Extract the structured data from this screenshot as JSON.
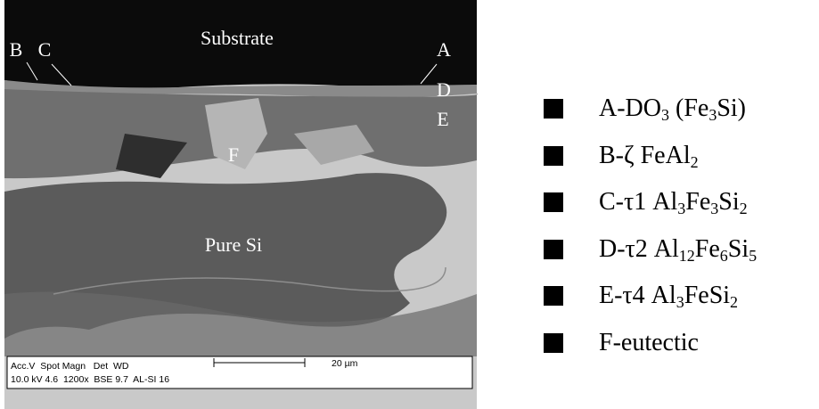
{
  "micrograph": {
    "labels": {
      "substrate": "Substrate",
      "a": "A",
      "b": "B",
      "c": "C",
      "d": "D",
      "e": "E",
      "f": "F",
      "pure_si": "Pure Si"
    },
    "databar": {
      "header": "Acc.V  Spot Magn   Det  WD",
      "settings": "10.0 kV 4.6  1200x  BSE 9.7  AL-SI 16",
      "scale": "20 µm"
    }
  },
  "legend": [
    "A-DO3 (Fe3Si)",
    "B-ζ FeAl2",
    "C-τ1 Al3Fe3Si2",
    "D-τ2 Al12Fe6Si5",
    "E-τ4 Al3FeSi2",
    "F-eutectic"
  ]
}
